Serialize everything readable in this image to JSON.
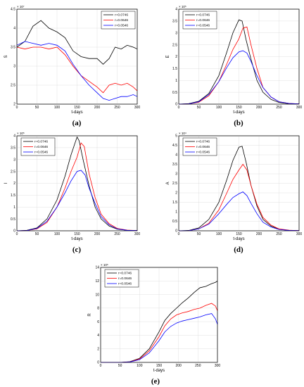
{
  "colors": {
    "r1": "#000000",
    "r2": "#ff0000",
    "r3": "#0000ff"
  },
  "chart_data": [
    {
      "panel": "a",
      "caption": "(a)",
      "type": "line",
      "ylabel": "S",
      "xlabel": "t-days",
      "exponent": "× 10⁷",
      "xlim": [
        0,
        300
      ],
      "ylim": [
        2,
        4.5
      ],
      "xticks": [
        0,
        50,
        100,
        150,
        200,
        250,
        300
      ],
      "yticks": [
        2,
        2.5,
        3,
        3.5,
        4,
        4.5
      ],
      "legend_position": "top-right",
      "grid": true,
      "series": [
        {
          "name": "r=0.0746",
          "color": "#000000",
          "x": [
            0,
            20,
            40,
            60,
            80,
            100,
            120,
            140,
            160,
            180,
            200,
            215,
            230,
            245,
            260,
            275,
            290,
            300
          ],
          "values": [
            3.5,
            3.65,
            4.05,
            4.2,
            4.0,
            3.9,
            3.75,
            3.4,
            3.25,
            3.2,
            3.2,
            3.05,
            3.2,
            3.5,
            3.45,
            3.55,
            3.5,
            3.45
          ]
        },
        {
          "name": "r=0.0646",
          "color": "#ff0000",
          "x": [
            0,
            20,
            40,
            60,
            80,
            100,
            120,
            140,
            160,
            180,
            200,
            215,
            230,
            245,
            260,
            275,
            290,
            300
          ],
          "values": [
            3.5,
            3.45,
            3.5,
            3.5,
            3.45,
            3.5,
            3.3,
            3.0,
            2.75,
            2.6,
            2.45,
            2.3,
            2.5,
            2.55,
            2.5,
            2.55,
            2.45,
            2.35
          ]
        },
        {
          "name": "r=0.0546",
          "color": "#0000ff",
          "x": [
            0,
            20,
            40,
            60,
            80,
            100,
            120,
            140,
            160,
            180,
            200,
            215,
            230,
            245,
            260,
            275,
            290,
            300
          ],
          "values": [
            3.55,
            3.65,
            3.6,
            3.55,
            3.6,
            3.55,
            3.4,
            3.05,
            2.75,
            2.5,
            2.3,
            2.15,
            2.1,
            2.15,
            2.2,
            2.2,
            2.25,
            2.2
          ]
        }
      ]
    },
    {
      "panel": "b",
      "caption": "(b)",
      "type": "line",
      "ylabel": "E",
      "xlabel": "t-days",
      "exponent": "× 10⁵",
      "xlim": [
        0,
        300
      ],
      "ylim": [
        0,
        4
      ],
      "xticks": [
        0,
        50,
        100,
        150,
        200,
        250,
        300
      ],
      "yticks": [
        0,
        0.5,
        1,
        1.5,
        2,
        2.5,
        3,
        3.5,
        4
      ],
      "legend_position": "top-left",
      "grid": true,
      "series": [
        {
          "name": "r=0.0746",
          "color": "#000000",
          "x": [
            0,
            25,
            50,
            75,
            100,
            120,
            135,
            150,
            158,
            168,
            180,
            195,
            210,
            230,
            250,
            275,
            300
          ],
          "values": [
            0,
            0.02,
            0.12,
            0.45,
            1.2,
            2.2,
            3.0,
            3.55,
            3.5,
            2.7,
            1.9,
            1.0,
            0.5,
            0.2,
            0.07,
            0.02,
            0.01
          ]
        },
        {
          "name": "r=0.0646",
          "color": "#ff0000",
          "x": [
            0,
            25,
            50,
            75,
            100,
            120,
            135,
            150,
            160,
            170,
            180,
            195,
            210,
            230,
            250,
            275,
            300
          ],
          "values": [
            0,
            0.01,
            0.08,
            0.35,
            0.95,
            1.7,
            2.3,
            2.75,
            3.2,
            3.25,
            2.5,
            1.5,
            0.7,
            0.3,
            0.1,
            0.03,
            0.01
          ]
        },
        {
          "name": "r=0.0546",
          "color": "#0000ff",
          "x": [
            0,
            25,
            50,
            75,
            100,
            120,
            135,
            150,
            160,
            170,
            180,
            195,
            210,
            230,
            250,
            275,
            300
          ],
          "values": [
            0,
            0.01,
            0.1,
            0.4,
            0.95,
            1.55,
            1.95,
            2.2,
            2.25,
            2.15,
            1.8,
            1.2,
            0.7,
            0.3,
            0.1,
            0.03,
            0.01
          ]
        }
      ]
    },
    {
      "panel": "c",
      "caption": "(c)",
      "type": "line",
      "ylabel": "I",
      "xlabel": "t-days",
      "exponent": "× 10⁵",
      "xlim": [
        0,
        300
      ],
      "ylim": [
        0,
        4
      ],
      "xticks": [
        0,
        50,
        100,
        150,
        200,
        250,
        300
      ],
      "yticks": [
        0,
        0.5,
        1,
        1.5,
        2,
        2.5,
        3,
        3.5,
        4
      ],
      "legend_position": "top-left",
      "grid": true,
      "series": [
        {
          "name": "r=0.0746",
          "color": "#000000",
          "x": [
            0,
            25,
            50,
            75,
            100,
            120,
            135,
            150,
            155,
            165,
            180,
            195,
            210,
            230,
            250,
            275,
            300
          ],
          "values": [
            0,
            0.02,
            0.12,
            0.5,
            1.3,
            2.3,
            3.2,
            3.95,
            3.8,
            3.0,
            1.9,
            1.0,
            0.5,
            0.2,
            0.07,
            0.02,
            0.01
          ]
        },
        {
          "name": "r=0.0646",
          "color": "#ff0000",
          "x": [
            0,
            25,
            50,
            75,
            100,
            120,
            135,
            150,
            160,
            168,
            180,
            195,
            210,
            230,
            250,
            275,
            300
          ],
          "values": [
            0,
            0.01,
            0.08,
            0.35,
            1.0,
            1.8,
            2.5,
            3.1,
            3.7,
            3.55,
            2.4,
            1.4,
            0.7,
            0.3,
            0.1,
            0.03,
            0.01
          ]
        },
        {
          "name": "r=0.0546",
          "color": "#0000ff",
          "x": [
            0,
            25,
            50,
            75,
            100,
            120,
            135,
            150,
            160,
            170,
            180,
            195,
            210,
            230,
            250,
            275,
            300
          ],
          "values": [
            0,
            0.01,
            0.1,
            0.4,
            1.0,
            1.6,
            2.1,
            2.5,
            2.55,
            2.35,
            1.8,
            1.15,
            0.6,
            0.25,
            0.08,
            0.02,
            0.01
          ]
        }
      ]
    },
    {
      "panel": "d",
      "caption": "(d)",
      "type": "line",
      "ylabel": "A",
      "xlabel": "t-days",
      "exponent": "× 10⁴",
      "xlim": [
        0,
        300
      ],
      "ylim": [
        0,
        5
      ],
      "xticks": [
        0,
        50,
        100,
        150,
        200,
        250,
        300
      ],
      "yticks": [
        0,
        0.5,
        1,
        1.5,
        2,
        2.5,
        3,
        3.5,
        4,
        4.5,
        5
      ],
      "legend_position": "top-left",
      "grid": true,
      "series": [
        {
          "name": "r=0.0746",
          "color": "#000000",
          "x": [
            0,
            25,
            50,
            75,
            100,
            120,
            135,
            150,
            158,
            168,
            180,
            195,
            210,
            230,
            250,
            275,
            300
          ],
          "values": [
            0,
            0.02,
            0.15,
            0.6,
            1.5,
            2.7,
            3.7,
            4.4,
            4.45,
            3.6,
            2.4,
            1.3,
            0.6,
            0.25,
            0.08,
            0.02,
            0.01
          ]
        },
        {
          "name": "r=0.0646",
          "color": "#ff0000",
          "x": [
            0,
            25,
            50,
            75,
            100,
            120,
            135,
            150,
            160,
            170,
            180,
            195,
            210,
            230,
            250,
            275,
            300
          ],
          "values": [
            0,
            0.01,
            0.1,
            0.4,
            1.1,
            2.0,
            2.7,
            3.2,
            3.5,
            3.2,
            2.4,
            1.4,
            0.7,
            0.3,
            0.1,
            0.03,
            0.01
          ]
        },
        {
          "name": "r=0.0546",
          "color": "#0000ff",
          "x": [
            0,
            25,
            50,
            75,
            100,
            120,
            135,
            150,
            160,
            170,
            180,
            195,
            210,
            230,
            250,
            275,
            300
          ],
          "values": [
            0,
            0.01,
            0.1,
            0.35,
            0.9,
            1.4,
            1.75,
            1.95,
            2.05,
            1.85,
            1.45,
            0.9,
            0.45,
            0.2,
            0.07,
            0.02,
            0.01
          ]
        }
      ]
    },
    {
      "panel": "e",
      "caption": "(e)",
      "type": "line",
      "ylabel": "R",
      "xlabel": "t-days",
      "exponent": "× 10⁶",
      "xlim": [
        0,
        300
      ],
      "ylim": [
        0,
        14
      ],
      "xticks": [
        0,
        50,
        100,
        150,
        200,
        250,
        300
      ],
      "yticks": [
        0,
        2,
        4,
        6,
        8,
        10,
        12,
        14
      ],
      "legend_position": "top-left",
      "grid": true,
      "series": [
        {
          "name": "r=0.0746",
          "color": "#000000",
          "x": [
            0,
            50,
            75,
            100,
            125,
            150,
            165,
            180,
            195,
            210,
            225,
            240,
            255,
            270,
            285,
            295,
            300
          ],
          "values": [
            0,
            0,
            0.1,
            0.6,
            2.0,
            4.5,
            6.2,
            7.2,
            8.0,
            8.8,
            9.5,
            10.3,
            11.0,
            11.2,
            11.6,
            11.8,
            12.0
          ]
        },
        {
          "name": "r=0.0646",
          "color": "#ff0000",
          "x": [
            0,
            50,
            75,
            100,
            125,
            150,
            165,
            180,
            195,
            210,
            225,
            240,
            255,
            270,
            285,
            295,
            300
          ],
          "values": [
            0,
            0,
            0.08,
            0.5,
            1.7,
            3.8,
            5.4,
            6.4,
            7.0,
            7.3,
            7.5,
            7.8,
            8.0,
            8.4,
            8.7,
            8.3,
            7.6
          ]
        },
        {
          "name": "r=0.0546",
          "color": "#0000ff",
          "x": [
            0,
            50,
            75,
            100,
            125,
            150,
            165,
            180,
            195,
            210,
            225,
            240,
            255,
            270,
            285,
            295,
            300
          ],
          "values": [
            0,
            0,
            0.06,
            0.4,
            1.4,
            3.2,
            4.5,
            5.3,
            5.8,
            6.1,
            6.3,
            6.5,
            6.7,
            7.0,
            7.2,
            6.4,
            5.6
          ]
        }
      ]
    }
  ]
}
